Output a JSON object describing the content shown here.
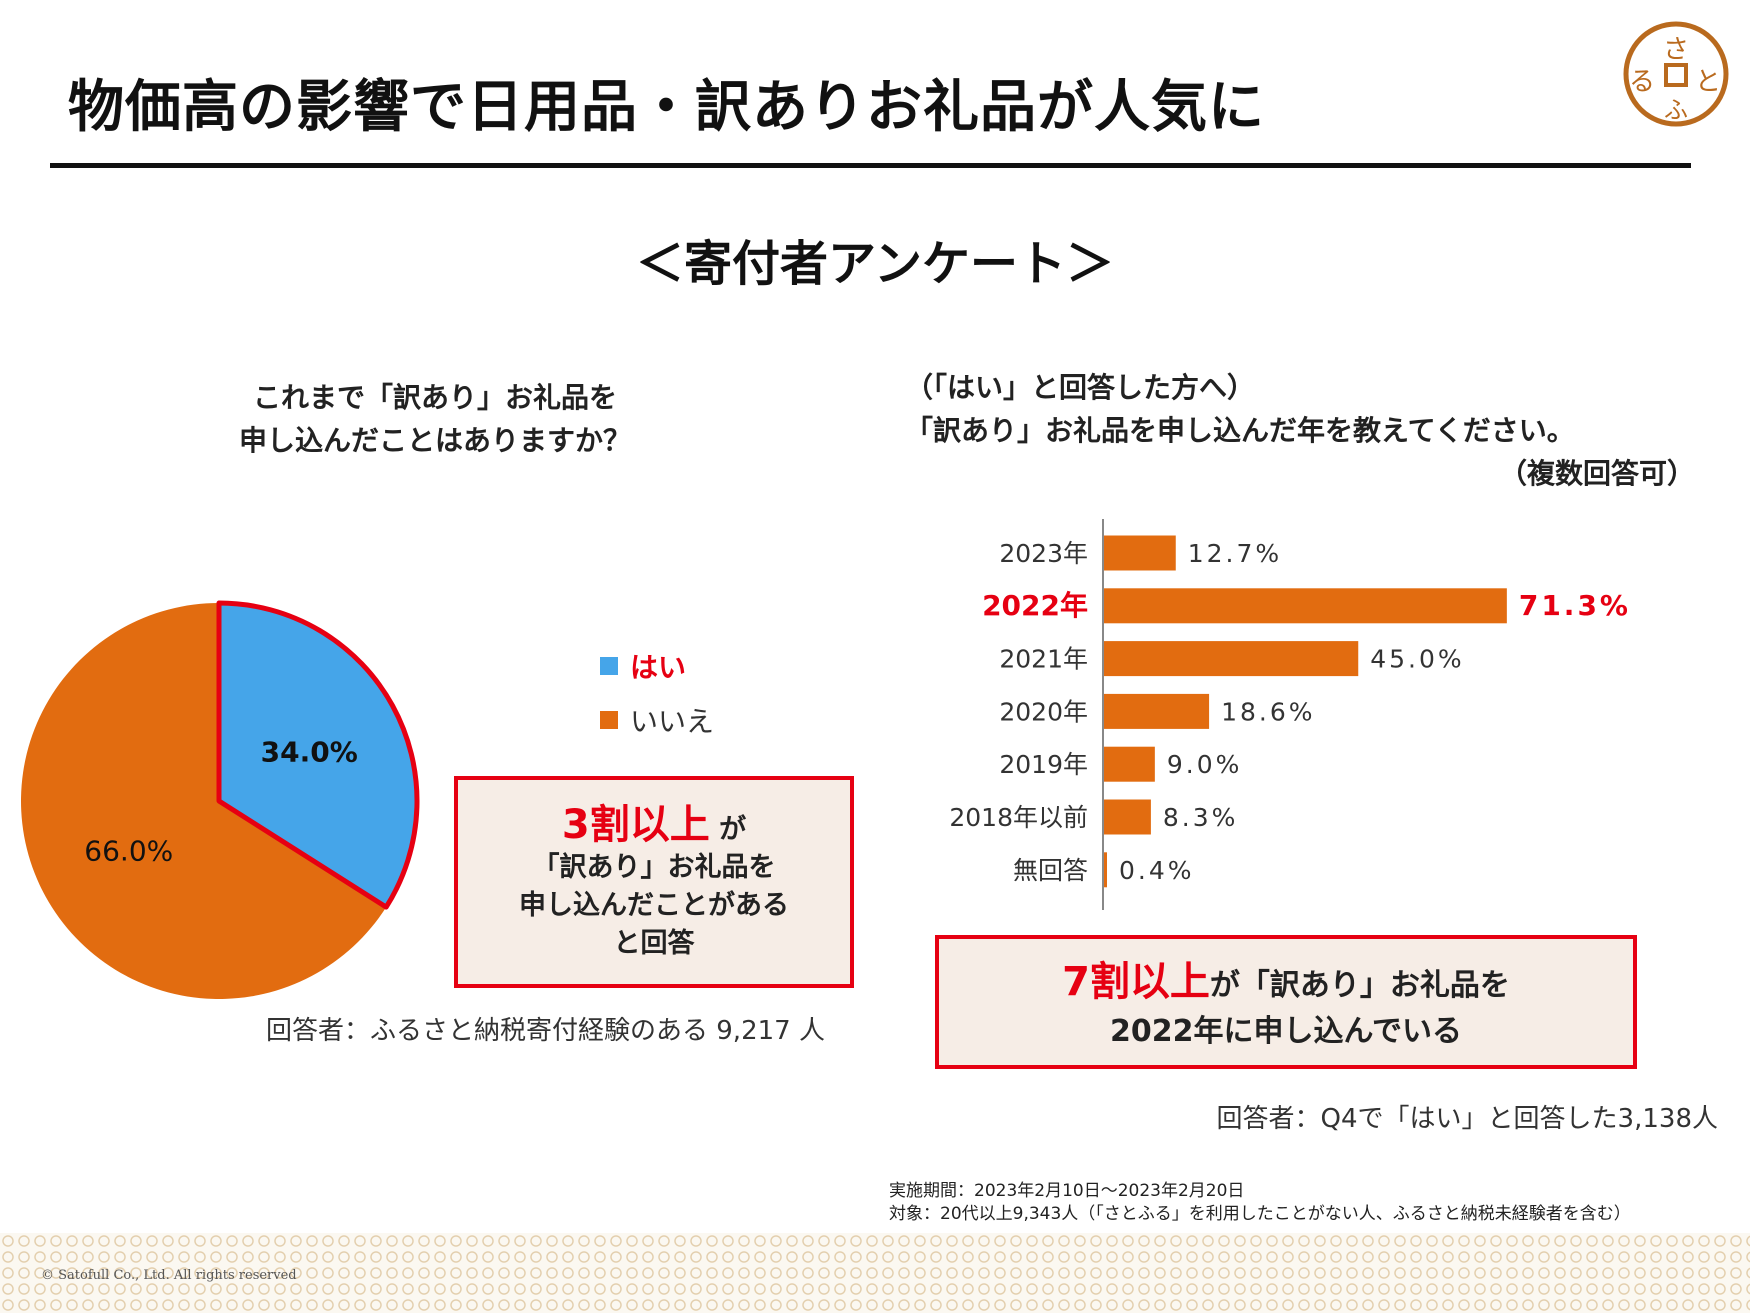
{
  "header": {
    "title": "物価高の影響で日用品・訳ありお礼品が人気に",
    "logo_text": "さとふる"
  },
  "subtitle": "＜寄付者アンケート＞",
  "left": {
    "question": [
      "これまで「訳あり」お礼品を",
      "申し込んだことはありますか？"
    ],
    "highlight": {
      "big": "3割以上",
      "small": "が",
      "lines": [
        "「訳あり」お礼品を",
        "申し込んだことがある",
        "と回答"
      ]
    },
    "respondents": "回答者：ふるさと納税寄付経験のある 9,217 人"
  },
  "right": {
    "question": [
      "（「はい」と回答した方へ）",
      "「訳あり」お礼品を申し込んだ年を教えてください。",
      "（複数回答可）"
    ],
    "highlight": {
      "big": "7割以上",
      "rest1": "が「訳あり」お礼品を",
      "line2": "2022年に申し込んでいる"
    },
    "respondents": "回答者：Q4で「はい」と回答した3,138人"
  },
  "notes": [
    "実施期間：2023年2月10日～2023年2月20日",
    "対象：20代以上9,343人（「さとふる」を利用したことがない人、ふるさと納税未経験者を含む）"
  ],
  "copyright": "© Satofull Co., Ltd. All rights reserved",
  "chart_data": [
    {
      "type": "pie",
      "categories": [
        "はい",
        "いいえ"
      ],
      "values": [
        34.0,
        66.0
      ],
      "labels": [
        "34.0%",
        "66.0%"
      ],
      "colors": [
        "#45a5e9",
        "#e26c10"
      ],
      "highlight_color": "#e60012",
      "legend": "right"
    },
    {
      "type": "bar",
      "orientation": "horizontal",
      "categories": [
        "2023年",
        "2022年",
        "2021年",
        "2020年",
        "2019年",
        "2018年以前",
        "無回答"
      ],
      "values": [
        12.7,
        71.3,
        45.0,
        18.6,
        9.0,
        8.3,
        0.4
      ],
      "labels": [
        "12.7%",
        "71.3%",
        "45.0%",
        "18.6%",
        "9.0%",
        "8.3%",
        "0.4%"
      ],
      "highlight_index": 1,
      "bar_color": "#e26c10",
      "highlight_text_color": "#e60012"
    }
  ]
}
